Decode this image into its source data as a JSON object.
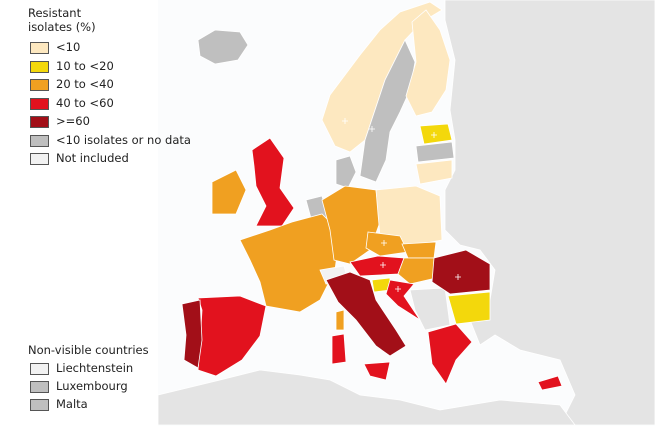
{
  "legend": {
    "title": "Resistant isolates (%)",
    "items": [
      {
        "label": "<10",
        "color": "#fde8c0"
      },
      {
        "label": "10 to <20",
        "color": "#f3d80c"
      },
      {
        "label": "20 to <40",
        "color": "#f0a021"
      },
      {
        "label": "40 to <60",
        "color": "#e2121e"
      },
      {
        "label": ">=60",
        "color": "#a20f18"
      },
      {
        "label": "<10 isolates or no data",
        "color": "#bfbfbf"
      },
      {
        "label": "Not included",
        "color": "#f2f2f2"
      }
    ]
  },
  "non_visible": {
    "title": "Non-visible countries",
    "items": [
      {
        "label": "Liechtenstein",
        "color": "#f2f2f2"
      },
      {
        "label": "Luxembourg",
        "color": "#bfbfbf"
      },
      {
        "label": "Malta",
        "color": "#bfbfbf"
      }
    ]
  }
}
